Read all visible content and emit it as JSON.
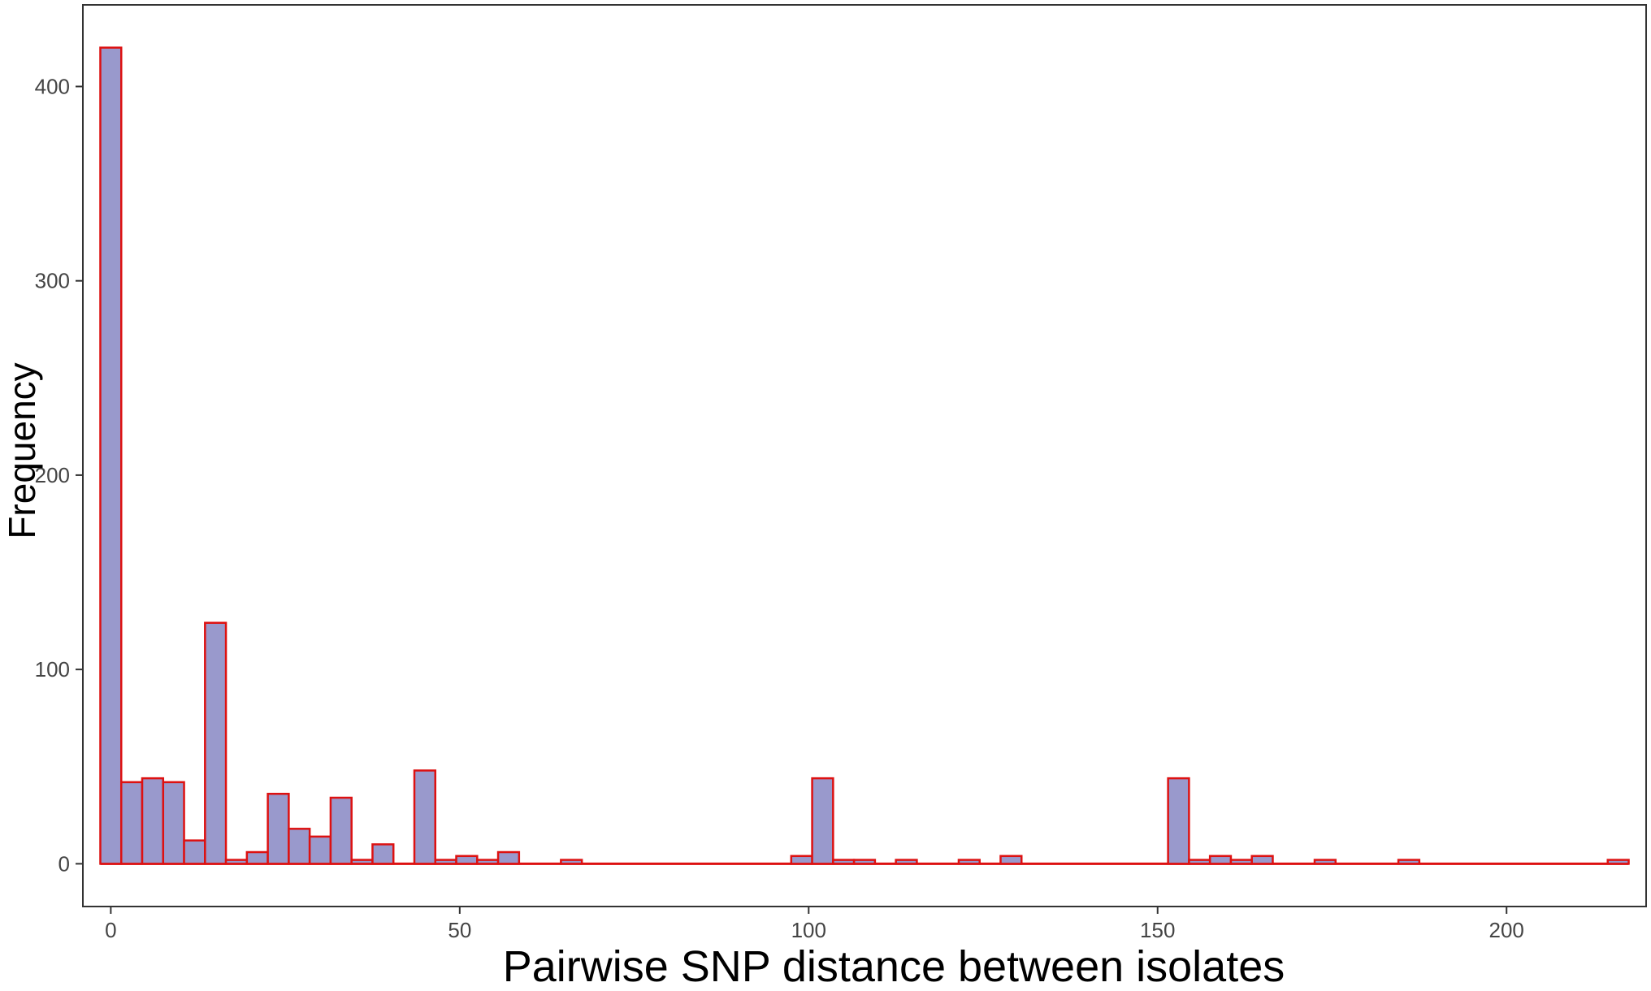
{
  "chart_data": {
    "type": "bar",
    "title": "",
    "xlabel": "Pairwise SNP distance between isolates",
    "ylabel": "Frequency",
    "xlim": [
      -4,
      220
    ],
    "ylim": [
      -22,
      442
    ],
    "xticks": [
      0,
      50,
      100,
      150,
      200
    ],
    "yticks": [
      0,
      100,
      200,
      300,
      400
    ],
    "xtick_labels": [
      "0",
      "50",
      "100",
      "150",
      "200"
    ],
    "ytick_labels": [
      "0",
      "100",
      "200",
      "300",
      "400"
    ],
    "binwidth": 3,
    "bin_start": -1.5,
    "bars": [
      {
        "x": 0,
        "value": 420
      },
      {
        "x": 3,
        "value": 42
      },
      {
        "x": 6,
        "value": 44
      },
      {
        "x": 9,
        "value": 42
      },
      {
        "x": 12,
        "value": 12
      },
      {
        "x": 15,
        "value": 124
      },
      {
        "x": 18,
        "value": 2
      },
      {
        "x": 21,
        "value": 6
      },
      {
        "x": 24,
        "value": 36
      },
      {
        "x": 27,
        "value": 18
      },
      {
        "x": 30,
        "value": 14
      },
      {
        "x": 33,
        "value": 34
      },
      {
        "x": 36,
        "value": 2
      },
      {
        "x": 39,
        "value": 10
      },
      {
        "x": 45,
        "value": 48
      },
      {
        "x": 48,
        "value": 2
      },
      {
        "x": 51,
        "value": 4
      },
      {
        "x": 54,
        "value": 2
      },
      {
        "x": 57,
        "value": 6
      },
      {
        "x": 66,
        "value": 2
      },
      {
        "x": 99,
        "value": 4
      },
      {
        "x": 102,
        "value": 44
      },
      {
        "x": 105,
        "value": 2
      },
      {
        "x": 108,
        "value": 2
      },
      {
        "x": 114,
        "value": 2
      },
      {
        "x": 123,
        "value": 2
      },
      {
        "x": 129,
        "value": 4
      },
      {
        "x": 153,
        "value": 44
      },
      {
        "x": 156,
        "value": 2
      },
      {
        "x": 159,
        "value": 4
      },
      {
        "x": 162,
        "value": 2
      },
      {
        "x": 165,
        "value": 4
      },
      {
        "x": 174,
        "value": 2
      },
      {
        "x": 186,
        "value": 2
      },
      {
        "x": 216,
        "value": 2
      }
    ],
    "grid": false,
    "bar_fill": "#9999cc",
    "bar_outline": "#dd1111",
    "panel_border": "#333333"
  }
}
